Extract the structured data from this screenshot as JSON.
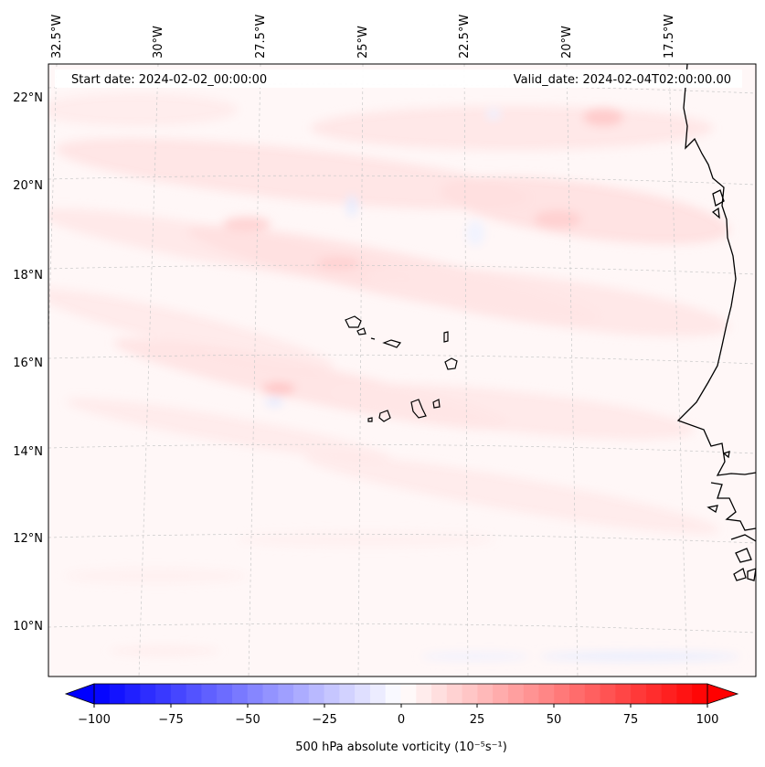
{
  "header": {
    "start_date": "Start date: 2024-02-02_00:00:00",
    "valid_date": "Valid_date: 2024-02-04T02:00:00.00"
  },
  "longitude_labels": [
    "32.5°W",
    "30°W",
    "27.5°W",
    "25°W",
    "22.5°W",
    "20°W",
    "17.5°W"
  ],
  "latitude_labels": [
    "22°N",
    "20°N",
    "18°N",
    "16°N",
    "14°N",
    "12°N",
    "10°N"
  ],
  "colorbar": {
    "title": "500 hPa absolute vorticity (10⁻⁵s⁻¹)",
    "ticks": [
      "−100",
      "−75",
      "−50",
      "−25",
      "0",
      "25",
      "50",
      "75",
      "100"
    ],
    "min": -100,
    "max": 100,
    "levels": 40,
    "neg_color": "#0000ff",
    "zero_color": "#ffffff",
    "pos_color": "#ff0000",
    "extend": "both"
  },
  "map": {
    "background_color": "#fff7f7",
    "coastline_color": "#000000",
    "grid_color": "#c8c8c8"
  }
}
